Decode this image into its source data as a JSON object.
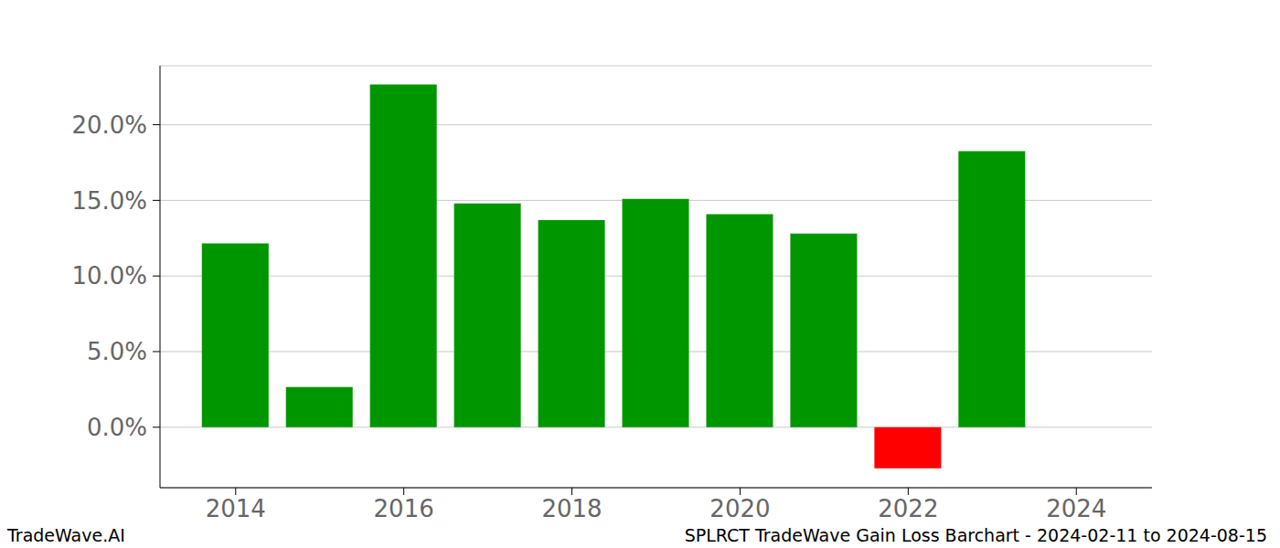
{
  "chart_data": {
    "type": "bar",
    "annotations": [
      "TradeWave.AI",
      "SPLRCT TradeWave Gain Loss Barchart - 2024-02-11 to 2024-08-15"
    ],
    "x": [
      2014,
      2015,
      2016,
      2017,
      2018,
      2019,
      2020,
      2021,
      2022,
      2023
    ],
    "values": [
      12.15,
      2.66,
      22.66,
      14.8,
      13.7,
      15.1,
      14.08,
      12.8,
      -2.72,
      18.25
    ],
    "colors": [
      "#009600",
      "#009600",
      "#009600",
      "#009600",
      "#009600",
      "#009600",
      "#009600",
      "#009600",
      "#ff0000",
      "#009600"
    ],
    "xlim": [
      2013.1,
      2024.9
    ],
    "xticks": [
      2014,
      2016,
      2018,
      2020,
      2022,
      2024
    ],
    "ylim": [
      -4,
      23.9
    ],
    "yticks": [
      {
        "value": 0,
        "label": "0.0%"
      },
      {
        "value": 5,
        "label": "5.0%"
      },
      {
        "value": 10,
        "label": "10.0%"
      },
      {
        "value": 15,
        "label": "15.0%"
      },
      {
        "value": 20,
        "label": "20.0%"
      }
    ],
    "grid": true
  }
}
